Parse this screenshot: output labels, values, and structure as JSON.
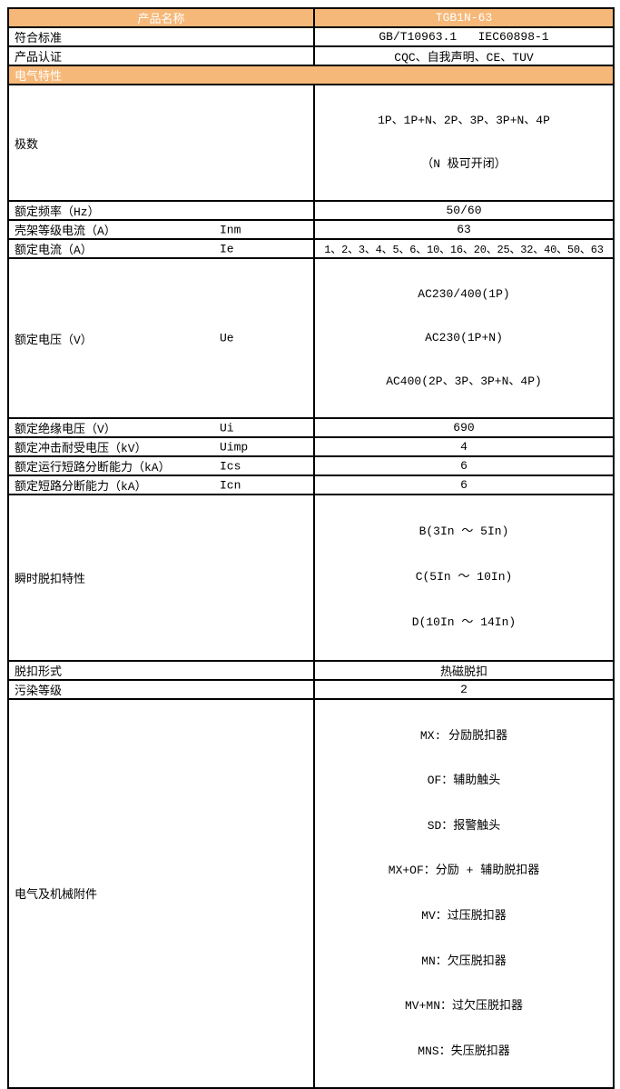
{
  "colors": {
    "accent_orange": "#F6B878",
    "header_text": "#FFFFFF",
    "body_text": "#000000",
    "border": "#000000",
    "background": "#FFFFFF"
  },
  "table": {
    "header": {
      "label": "产品名称",
      "model": "TGB1N-63"
    },
    "rows": {
      "standards": {
        "label": "符合标准",
        "value": "GB/T10963.1   IEC60898-1"
      },
      "certs": {
        "label": "产品认证",
        "value": "CQC、自我声明、CE、TUV"
      },
      "section": {
        "label": "电气特性"
      },
      "poles": {
        "label": "极数",
        "lines": [
          "1P、1P+N、2P、3P、3P+N、4P",
          "（N 极可开闭）"
        ]
      },
      "freq": {
        "label": "额定频率（Hz）",
        "value": "50/60"
      },
      "frame": {
        "label": "壳架等级电流（A）",
        "symbol": "Inm",
        "value": "63"
      },
      "current": {
        "label": "额定电流（A）",
        "symbol": "Ie",
        "value": "1、2、3、4、5、6、10、16、20、25、32、40、50、63"
      },
      "voltage": {
        "label": "额定电压（V）",
        "symbol": "Ue",
        "lines": [
          "AC230/400(1P)",
          "AC230(1P+N)",
          "AC400(2P、3P、3P+N、4P)"
        ]
      },
      "insulation": {
        "label": "额定绝缘电压（V）",
        "symbol": "Ui",
        "value": "690"
      },
      "impulse": {
        "label": "额定冲击耐受电压（kV）",
        "symbol": "Uimp",
        "value": "4"
      },
      "ics": {
        "label": "额定运行短路分断能力（kA）",
        "symbol": "Ics",
        "value": "6"
      },
      "icn": {
        "label": "额定短路分断能力（kA）",
        "symbol": "Icn",
        "value": "6"
      },
      "trip_curve": {
        "label": "瞬时脱扣特性",
        "lines": [
          "B(3In ～ 5In)",
          "C(5In ～ 10In)",
          "D(10In ～ 14In)"
        ]
      },
      "trip_type": {
        "label": "脱扣形式",
        "value": "热磁脱扣"
      },
      "pollution": {
        "label": "污染等级",
        "value": "2"
      },
      "accessories": {
        "label": "电气及机械附件",
        "lines": [
          "MX: 分励脱扣器",
          "OF：辅助触头",
          "SD：报警触头",
          "MX+OF：分励 + 辅助脱扣器",
          "MV：过压脱扣器",
          "MN：欠压脱扣器",
          "MV+MN：过欠压脱扣器",
          "MNS：失压脱扣器"
        ]
      }
    }
  }
}
